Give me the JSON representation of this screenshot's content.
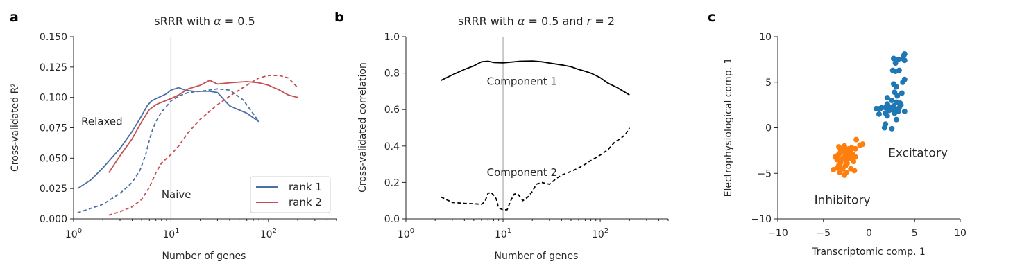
{
  "colors": {
    "rank1": "#4a6fa5",
    "rank2": "#c44e52",
    "component": "#000000",
    "excitatory": "#1f77b4",
    "inhibitory": "#ff7f0e",
    "vline": "#b0b0b0"
  },
  "chart_data": [
    {
      "panel": "a",
      "type": "line",
      "title": "sRRR with α = 0.5",
      "title_parts": {
        "pre": "sRRR with ",
        "greek": "α",
        "post": " = 0.5"
      },
      "xlabel": "Number of genes",
      "ylabel": "Cross-validated R²",
      "xscale": "log",
      "xlim": [
        1,
        500
      ],
      "ylim": [
        0,
        0.15
      ],
      "xticks": [
        {
          "value": 1,
          "base": "10",
          "exp": "0"
        },
        {
          "value": 10,
          "base": "10",
          "exp": "1"
        },
        {
          "value": 100,
          "base": "10",
          "exp": "2"
        }
      ],
      "yticks": [
        "0.000",
        "0.025",
        "0.050",
        "0.075",
        "0.100",
        "0.125",
        "0.150"
      ],
      "ytick_values": [
        0,
        0.025,
        0.05,
        0.075,
        0.1,
        0.125,
        0.15
      ],
      "vline_x": 10,
      "annotations": [
        {
          "text": "Relaxed",
          "x": 1.2,
          "y": 0.08
        },
        {
          "text": "Naive",
          "x": 8,
          "y": 0.02
        }
      ],
      "legend": {
        "position": "lower-right",
        "entries": [
          "rank 1",
          "rank 2"
        ]
      },
      "series": [
        {
          "name": "rank 1",
          "style": "solid",
          "color_key": "rank1",
          "x": [
            1.1,
            1.5,
            2,
            3,
            4,
            5,
            5.7,
            6.3,
            7,
            8,
            9,
            10,
            12,
            14,
            17,
            20,
            25,
            30,
            40,
            60,
            80
          ],
          "y": [
            0.025,
            0.032,
            0.042,
            0.058,
            0.072,
            0.085,
            0.093,
            0.097,
            0.099,
            0.101,
            0.103,
            0.106,
            0.108,
            0.106,
            0.105,
            0.105,
            0.105,
            0.104,
            0.093,
            0.087,
            0.08
          ]
        },
        {
          "name": "rank 1",
          "style": "dashed",
          "color_key": "rank1",
          "x": [
            1.1,
            2,
            3,
            4,
            4.8,
            5.5,
            6,
            6.5,
            7,
            8,
            10,
            12,
            15,
            20,
            30,
            40,
            55,
            80
          ],
          "y": [
            0.005,
            0.012,
            0.021,
            0.03,
            0.04,
            0.053,
            0.065,
            0.074,
            0.08,
            0.088,
            0.097,
            0.101,
            0.104,
            0.105,
            0.107,
            0.106,
            0.098,
            0.08
          ]
        },
        {
          "name": "rank 2",
          "style": "solid",
          "color_key": "rank2",
          "x": [
            2.3,
            3,
            4,
            5,
            6,
            7,
            8,
            10,
            12,
            15,
            20,
            25,
            30,
            40,
            60,
            80,
            100,
            130,
            160,
            200
          ],
          "y": [
            0.038,
            0.052,
            0.066,
            0.08,
            0.09,
            0.094,
            0.096,
            0.099,
            0.102,
            0.107,
            0.11,
            0.114,
            0.111,
            0.112,
            0.113,
            0.112,
            0.11,
            0.106,
            0.102,
            0.1
          ]
        },
        {
          "name": "rank 2",
          "style": "dashed",
          "color_key": "rank2",
          "x": [
            2.3,
            3,
            4,
            5,
            6,
            7,
            8,
            10,
            12,
            15,
            20,
            30,
            40,
            60,
            80,
            100,
            130,
            160,
            200
          ],
          "y": [
            0.003,
            0.006,
            0.01,
            0.016,
            0.026,
            0.038,
            0.046,
            0.053,
            0.06,
            0.071,
            0.082,
            0.094,
            0.101,
            0.11,
            0.116,
            0.118,
            0.118,
            0.116,
            0.108
          ]
        }
      ]
    },
    {
      "panel": "b",
      "type": "line",
      "title": "sRRR with α = 0.5 and r = 2",
      "title_parts": {
        "pre": "sRRR with ",
        "greek": "α",
        "mid": " = 0.5 and ",
        "italic": "r",
        "post": " = 2"
      },
      "xlabel": "Number of genes",
      "ylabel": "Cross-validated correlation",
      "xscale": "log",
      "xlim": [
        1,
        500
      ],
      "ylim": [
        0,
        1
      ],
      "xticks": [
        {
          "value": 1,
          "base": "10",
          "exp": "0"
        },
        {
          "value": 10,
          "base": "10",
          "exp": "1"
        },
        {
          "value": 100,
          "base": "10",
          "exp": "2"
        }
      ],
      "yticks": [
        "0.0",
        "0.2",
        "0.4",
        "0.6",
        "0.8",
        "1.0"
      ],
      "ytick_values": [
        0,
        0.2,
        0.4,
        0.6,
        0.8,
        1.0
      ],
      "vline_x": 10,
      "annotations": [
        {
          "text": "Component 1",
          "x": 6.8,
          "y": 0.755
        },
        {
          "text": "Component 2",
          "x": 6.8,
          "y": 0.255
        }
      ],
      "series": [
        {
          "name": "Component 1",
          "style": "solid",
          "color_key": "component",
          "x": [
            2.3,
            3,
            4,
            5,
            6,
            7,
            8,
            10,
            12,
            15,
            20,
            25,
            30,
            40,
            50,
            60,
            70,
            80,
            100,
            120,
            150,
            200
          ],
          "y": [
            0.76,
            0.79,
            0.82,
            0.84,
            0.862,
            0.865,
            0.858,
            0.856,
            0.86,
            0.865,
            0.866,
            0.862,
            0.855,
            0.845,
            0.835,
            0.82,
            0.81,
            0.8,
            0.775,
            0.745,
            0.72,
            0.68
          ]
        },
        {
          "name": "Component 2",
          "style": "dashed",
          "color_key": "component",
          "x": [
            2.3,
            3,
            4,
            5,
            6,
            6.5,
            7,
            7.5,
            8,
            8.5,
            9,
            10,
            11,
            12,
            13,
            14,
            15,
            16,
            18,
            20,
            22,
            25,
            30,
            35,
            40,
            50,
            60,
            70,
            80,
            100,
            120,
            140,
            160,
            180,
            200
          ],
          "y": [
            0.12,
            0.09,
            0.085,
            0.083,
            0.08,
            0.095,
            0.14,
            0.145,
            0.13,
            0.11,
            0.06,
            0.05,
            0.05,
            0.1,
            0.135,
            0.14,
            0.12,
            0.1,
            0.12,
            0.15,
            0.19,
            0.2,
            0.19,
            0.22,
            0.24,
            0.26,
            0.28,
            0.3,
            0.32,
            0.35,
            0.38,
            0.42,
            0.44,
            0.46,
            0.5
          ]
        }
      ]
    },
    {
      "panel": "c",
      "type": "scatter",
      "xlabel": "Transcriptomic comp. 1",
      "ylabel": "Electrophysiological comp. 1",
      "xlim": [
        -10,
        10
      ],
      "ylim": [
        -10,
        10
      ],
      "xticks": [
        "−10",
        "−5",
        "0",
        "5",
        "10"
      ],
      "xtick_values": [
        -10,
        -5,
        0,
        5,
        10
      ],
      "yticks": [
        "−10",
        "−5",
        "0",
        "5",
        "10"
      ],
      "ytick_values": [
        -10,
        -5,
        0,
        5,
        10
      ],
      "annotations": [
        {
          "text": "Excitatory",
          "x": 2.1,
          "y": -2.8
        },
        {
          "text": "Inhibitory",
          "x": -6.0,
          "y": -8.0
        }
      ],
      "series": [
        {
          "name": "Excitatory",
          "color_key": "excitatory",
          "points": [
            [
              3.9,
              8.1
            ],
            [
              3.8,
              7.9
            ],
            [
              3.7,
              7.6
            ],
            [
              2.7,
              7.6
            ],
            [
              3.2,
              7.5
            ],
            [
              3.9,
              7.4
            ],
            [
              2.9,
              7.1
            ],
            [
              3.3,
              6.3
            ],
            [
              2.9,
              6.2
            ],
            [
              2.6,
              6.3
            ],
            [
              3.9,
              5.3
            ],
            [
              3.7,
              5.0
            ],
            [
              3.0,
              4.5
            ],
            [
              2.7,
              4.8
            ],
            [
              3.6,
              3.8
            ],
            [
              2.8,
              3.9
            ],
            [
              3.1,
              3.5
            ],
            [
              2.0,
              3.3
            ],
            [
              2.5,
              3.0
            ],
            [
              3.0,
              2.8
            ],
            [
              3.4,
              2.7
            ],
            [
              2.0,
              2.6
            ],
            [
              2.7,
              2.4
            ],
            [
              3.5,
              2.5
            ],
            [
              2.2,
              2.3
            ],
            [
              1.4,
              2.2
            ],
            [
              1.8,
              2.2
            ],
            [
              1.2,
              2.1
            ],
            [
              0.8,
              2.1
            ],
            [
              2.5,
              2.0
            ],
            [
              3.0,
              1.9
            ],
            [
              3.9,
              1.8
            ],
            [
              3.2,
              1.8
            ],
            [
              2.8,
              1.6
            ],
            [
              1.8,
              1.6
            ],
            [
              1.1,
              1.5
            ],
            [
              2.0,
              1.3
            ],
            [
              3.0,
              0.9
            ],
            [
              1.8,
              0.4
            ],
            [
              1.7,
              0.0
            ],
            [
              2.5,
              -0.1
            ],
            [
              2.2,
              1.9
            ],
            [
              3.3,
              2.2
            ]
          ]
        },
        {
          "name": "Inhibitory",
          "color_key": "inhibitory",
          "points": [
            [
              -1.4,
              -1.3
            ],
            [
              -0.7,
              -1.8
            ],
            [
              -1.0,
              -1.9
            ],
            [
              -2.7,
              -2.0
            ],
            [
              -3.3,
              -2.1
            ],
            [
              -1.9,
              -2.2
            ],
            [
              -2.2,
              -2.3
            ],
            [
              -1.5,
              -2.3
            ],
            [
              -2.9,
              -2.4
            ],
            [
              -3.1,
              -2.6
            ],
            [
              -2.4,
              -2.5
            ],
            [
              -2.0,
              -2.7
            ],
            [
              -3.2,
              -2.8
            ],
            [
              -2.6,
              -2.9
            ],
            [
              -1.8,
              -2.9
            ],
            [
              -3.4,
              -3.0
            ],
            [
              -2.3,
              -3.1
            ],
            [
              -1.5,
              -3.2
            ],
            [
              -2.8,
              -3.3
            ],
            [
              -3.0,
              -3.4
            ],
            [
              -2.0,
              -3.4
            ],
            [
              -3.5,
              -3.5
            ],
            [
              -2.5,
              -3.6
            ],
            [
              -1.7,
              -3.7
            ],
            [
              -3.1,
              -3.8
            ],
            [
              -2.4,
              -3.9
            ],
            [
              -3.3,
              -4.1
            ],
            [
              -2.6,
              -4.2
            ],
            [
              -3.5,
              -4.4
            ],
            [
              -2.9,
              -4.5
            ],
            [
              -2.0,
              -4.5
            ],
            [
              -1.6,
              -4.7
            ],
            [
              -3.9,
              -4.6
            ],
            [
              -3.2,
              -4.9
            ],
            [
              -2.5,
              -4.9
            ],
            [
              -2.7,
              -5.2
            ],
            [
              -2.2,
              -2.9
            ],
            [
              -3.7,
              -3.2
            ]
          ]
        }
      ]
    }
  ]
}
